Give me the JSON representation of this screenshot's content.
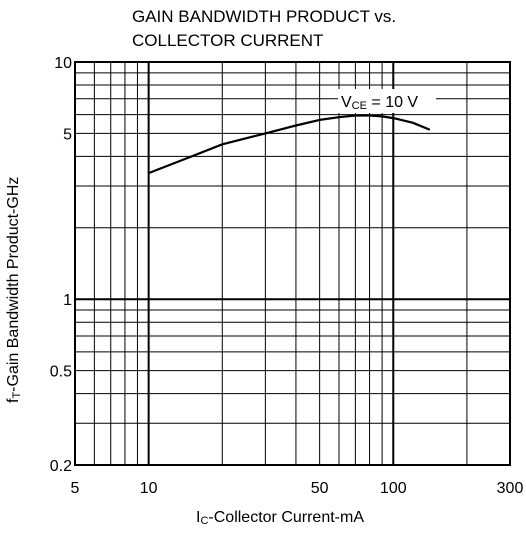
{
  "chart_data": {
    "type": "line",
    "title_line1": "GAIN BANDWIDTH PRODUCT vs.",
    "title_line2": "COLLECTOR CURRENT",
    "x_scale": "log",
    "y_scale": "log",
    "xlim": [
      5,
      300
    ],
    "ylim": [
      0.2,
      10
    ],
    "x_ticks": [
      5,
      10,
      50,
      100,
      300
    ],
    "x_tick_labels": [
      "5",
      "10",
      "50",
      "100",
      "300"
    ],
    "y_ticks": [
      0.2,
      0.5,
      1,
      5,
      10
    ],
    "y_tick_labels": [
      "0.2",
      "0.5",
      "1",
      "5",
      "10"
    ],
    "x_grid": [
      6,
      7,
      8,
      9,
      10,
      20,
      30,
      40,
      50,
      60,
      70,
      80,
      90,
      100,
      200,
      300
    ],
    "y_grid": [
      0.3,
      0.4,
      0.5,
      0.6,
      0.7,
      0.8,
      0.9,
      1,
      2,
      3,
      4,
      5,
      6,
      7,
      8,
      9
    ],
    "grid": true,
    "xlabel_main": "I",
    "xlabel_sub": "C",
    "xlabel_rest": "-Collector Current-mA",
    "ylabel_main": "f",
    "ylabel_sub": "T",
    "ylabel_rest": "-Gain Bandwidth Product-GHz",
    "annotation": {
      "main": "V",
      "sub": "CE",
      "rest": " = 10 V"
    },
    "series": [
      {
        "x": [
          10,
          15,
          20,
          30,
          40,
          50,
          60,
          70,
          80,
          90,
          100,
          120,
          140
        ],
        "y": [
          3.4,
          4.0,
          4.5,
          5.0,
          5.4,
          5.7,
          5.85,
          5.95,
          5.95,
          5.9,
          5.8,
          5.55,
          5.2
        ]
      }
    ]
  }
}
